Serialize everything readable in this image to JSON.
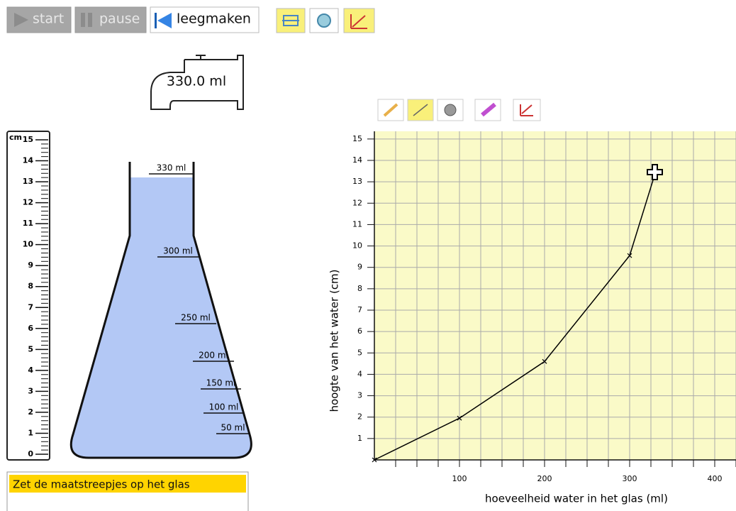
{
  "toolbar": {
    "start": "start",
    "pause": "pause",
    "clear": "leegmaken"
  },
  "tap": {
    "label": "330.0 ml"
  },
  "ruler": {
    "unit": "cm",
    "ticks": [
      0,
      1,
      2,
      3,
      4,
      5,
      6,
      7,
      8,
      9,
      10,
      11,
      12,
      13,
      14,
      15
    ]
  },
  "flask": {
    "marks": [
      "330 ml",
      "300 ml",
      "250 ml",
      "200 ml",
      "150 ml",
      "100 ml",
      "50 ml"
    ]
  },
  "task": {
    "title": "Zet de maatstreepjes op het glas"
  },
  "chart_data": {
    "type": "line",
    "xlabel": "hoeveelheid water in het glas (ml)",
    "ylabel": "hoogte van het water (cm)",
    "x": [
      0,
      100,
      200,
      300,
      330
    ],
    "series": [
      {
        "color": "#000000",
        "values": [
          0,
          1.95,
          4.6,
          9.55,
          13.4
        ]
      }
    ],
    "xlim": [
      0,
      425
    ],
    "ylim": [
      0,
      15.36
    ],
    "xticks": [
      100,
      200,
      300,
      400
    ],
    "xminor": [
      25,
      50,
      75,
      125,
      150,
      175,
      225,
      250,
      275,
      325,
      350,
      375,
      425
    ],
    "yticks": [
      1,
      2,
      3,
      4,
      5,
      6,
      7,
      8,
      9,
      10,
      11,
      12,
      13,
      14,
      15
    ],
    "grid": true,
    "background": "#fafac8"
  }
}
